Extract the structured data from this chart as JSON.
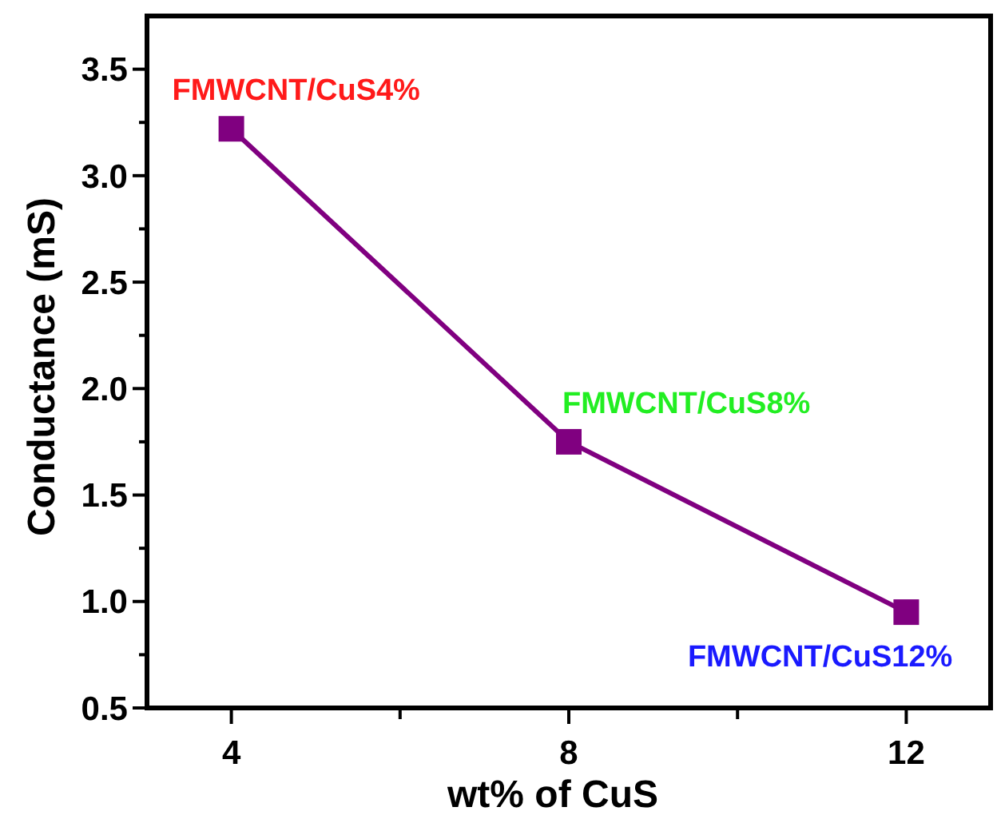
{
  "chart_data": {
    "type": "line",
    "xlabel": "wt% of CuS",
    "ylabel": "Conductance (mS)",
    "x": [
      4,
      8,
      12
    ],
    "series": [
      {
        "color": "#800080",
        "values": [
          3.22,
          1.75,
          0.95
        ]
      }
    ],
    "marker": "square",
    "line_style": "solid",
    "xlim": [
      3,
      13
    ],
    "xticks": [
      4,
      {
        "value": 6,
        "label": null
      },
      8,
      {
        "value": 10,
        "label": null
      },
      12
    ],
    "ylim": [
      0.5,
      3.75
    ],
    "yticks": [
      {
        "value": 0.5,
        "label": "0.5"
      },
      {
        "value": 0.75,
        "label": null
      },
      {
        "value": 1.0,
        "label": "1.0"
      },
      {
        "value": 1.25,
        "label": null
      },
      {
        "value": 1.5,
        "label": "1.5"
      },
      {
        "value": 1.75,
        "label": null
      },
      {
        "value": 2.0,
        "label": "2.0"
      },
      {
        "value": 2.25,
        "label": null
      },
      {
        "value": 2.5,
        "label": "2.5"
      },
      {
        "value": 2.75,
        "label": null
      },
      {
        "value": 3.0,
        "label": "3.0"
      },
      {
        "value": 3.25,
        "label": null
      },
      {
        "value": 3.5,
        "label": "3.5"
      }
    ],
    "annotations": [
      {
        "text": "FMWCNT/CuS4%",
        "x": 4,
        "y": 3.22
      },
      {
        "text": "FMWCNT/CuS8%",
        "x": 8,
        "y": 1.75
      },
      {
        "text": "FMWCNT/CuS12%",
        "x": 12,
        "y": 0.95
      }
    ],
    "grid": false
  }
}
